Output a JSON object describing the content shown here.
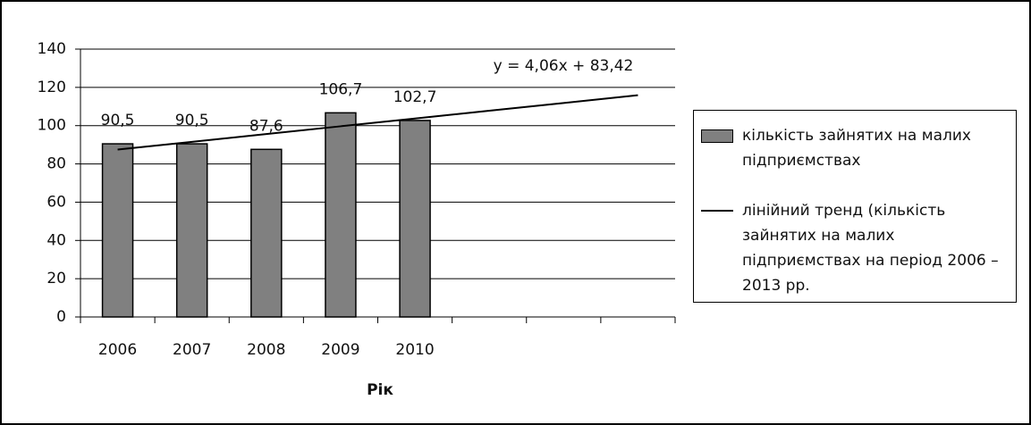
{
  "chart_data": {
    "type": "bar",
    "x_label": "Рік",
    "annotation": "y = 4,06x + 83,42",
    "categories": [
      "2006",
      "2007",
      "2008",
      "2009",
      "2010",
      null,
      null,
      null
    ],
    "series": [
      {
        "name": "кількість зайнятих на малих підприємствах",
        "type": "bar",
        "color": "#808080",
        "values": [
          90.5,
          90.5,
          87.6,
          106.7,
          102.7,
          null,
          null,
          null
        ],
        "value_labels": [
          "90,5",
          "90,5",
          "87,6",
          "106,7",
          "102,7",
          null,
          null,
          null
        ]
      },
      {
        "name": "лінійний тренд (кількість зайнятих на малих підприємствах на період 2006 – 2013 рр.",
        "type": "line",
        "color": "#000000",
        "values": [
          87.48,
          91.54,
          95.6,
          99.66,
          103.72,
          107.78,
          111.84,
          115.9
        ]
      }
    ],
    "ylim": [
      0,
      140
    ],
    "yticks": [
      0,
      20,
      40,
      60,
      80,
      100,
      120,
      140
    ],
    "grid": true
  }
}
